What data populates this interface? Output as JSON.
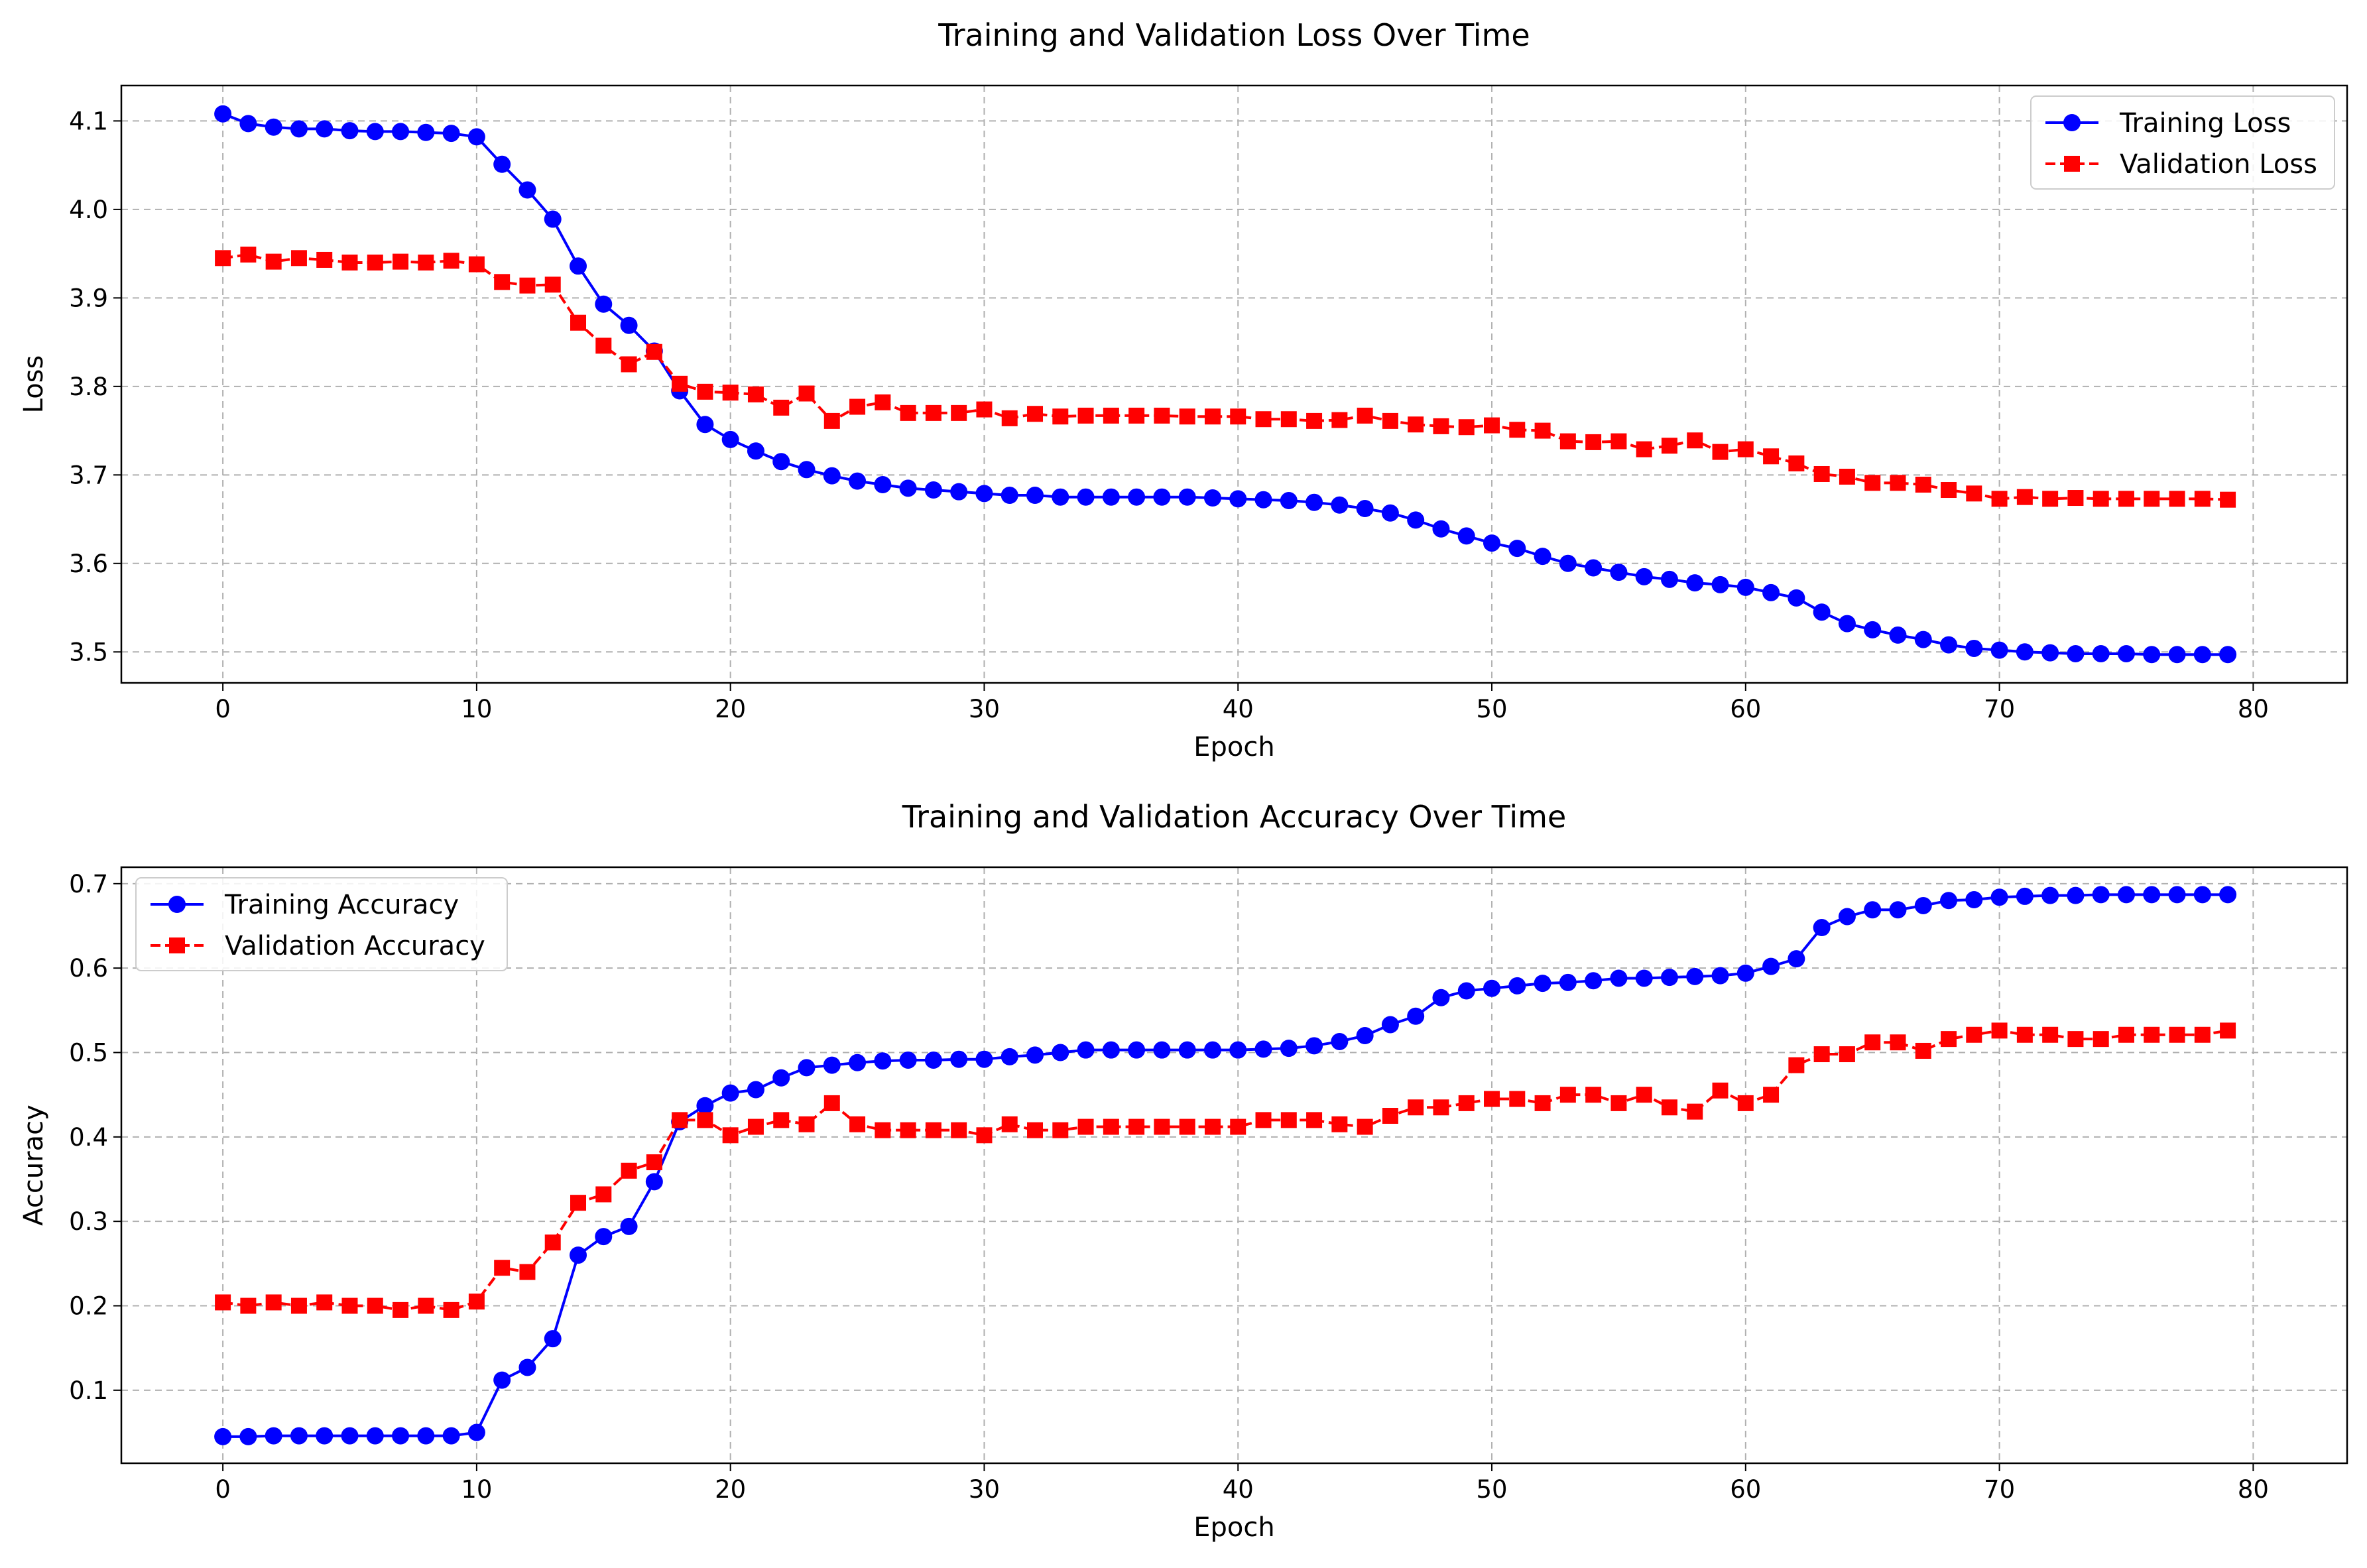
{
  "chart_data": [
    {
      "type": "line",
      "title": "Training and Validation Loss Over Time",
      "xlabel": "Epoch",
      "ylabel": "Loss",
      "xlim": [
        -4,
        83.7
      ],
      "ylim": [
        3.465,
        4.14
      ],
      "xticks": [
        0,
        10,
        20,
        30,
        40,
        50,
        60,
        70,
        80
      ],
      "yticks": [
        3.5,
        3.6,
        3.7,
        3.8,
        3.9,
        4.0,
        4.1
      ],
      "ytick_labels": [
        "3.5",
        "3.6",
        "3.7",
        "3.8",
        "3.9",
        "4.0",
        "4.1"
      ],
      "grid": true,
      "legend": "top-right",
      "x": [
        0,
        1,
        2,
        3,
        4,
        5,
        6,
        7,
        8,
        9,
        10,
        11,
        12,
        13,
        14,
        15,
        16,
        17,
        18,
        19,
        20,
        21,
        22,
        23,
        24,
        25,
        26,
        27,
        28,
        29,
        30,
        31,
        32,
        33,
        34,
        35,
        36,
        37,
        38,
        39,
        40,
        41,
        42,
        43,
        44,
        45,
        46,
        47,
        48,
        49,
        50,
        51,
        52,
        53,
        54,
        55,
        56,
        57,
        58,
        59,
        60,
        61,
        62,
        63,
        64,
        65,
        66,
        67,
        68,
        69,
        70,
        71,
        72,
        73,
        74,
        75,
        76,
        77,
        78,
        79
      ],
      "series": [
        {
          "name": "Training Loss",
          "color": "#0000ff",
          "marker": "circle",
          "linestyle": "solid",
          "values": [
            4.108,
            4.097,
            4.093,
            4.091,
            4.091,
            4.089,
            4.088,
            4.088,
            4.087,
            4.086,
            4.082,
            4.051,
            4.022,
            3.989,
            3.936,
            3.893,
            3.869,
            3.84,
            3.795,
            3.757,
            3.74,
            3.727,
            3.715,
            3.706,
            3.699,
            3.693,
            3.689,
            3.685,
            3.683,
            3.681,
            3.679,
            3.677,
            3.677,
            3.675,
            3.675,
            3.675,
            3.675,
            3.675,
            3.675,
            3.674,
            3.673,
            3.672,
            3.671,
            3.669,
            3.666,
            3.662,
            3.657,
            3.649,
            3.639,
            3.631,
            3.623,
            3.617,
            3.608,
            3.6,
            3.595,
            3.59,
            3.585,
            3.582,
            3.578,
            3.576,
            3.573,
            3.567,
            3.561,
            3.545,
            3.532,
            3.525,
            3.519,
            3.514,
            3.508,
            3.504,
            3.502,
            3.5,
            3.499,
            3.498,
            3.498,
            3.498,
            3.497,
            3.497,
            3.497,
            3.497
          ]
        },
        {
          "name": "Validation Loss",
          "color": "#ff0000",
          "marker": "square",
          "linestyle": "dashed",
          "values": [
            3.945,
            3.949,
            3.941,
            3.945,
            3.943,
            3.94,
            3.94,
            3.941,
            3.94,
            3.942,
            3.938,
            3.918,
            3.914,
            3.915,
            3.872,
            3.846,
            3.825,
            3.839,
            3.803,
            3.794,
            3.793,
            3.791,
            3.776,
            3.792,
            3.761,
            3.777,
            3.782,
            3.77,
            3.77,
            3.77,
            3.774,
            3.764,
            3.769,
            3.766,
            3.767,
            3.767,
            3.767,
            3.767,
            3.766,
            3.766,
            3.766,
            3.763,
            3.763,
            3.761,
            3.762,
            3.767,
            3.761,
            3.757,
            3.755,
            3.754,
            3.756,
            3.751,
            3.75,
            3.738,
            3.737,
            3.738,
            3.729,
            3.733,
            3.739,
            3.726,
            3.729,
            3.721,
            3.713,
            3.701,
            3.698,
            3.691,
            3.691,
            3.689,
            3.683,
            3.679,
            3.673,
            3.675,
            3.673,
            3.674,
            3.673,
            3.673,
            3.673,
            3.673,
            3.673,
            3.672
          ]
        }
      ]
    },
    {
      "type": "line",
      "title": "Training and Validation Accuracy Over Time",
      "xlabel": "Epoch",
      "ylabel": "Accuracy",
      "xlim": [
        -4,
        83.7
      ],
      "ylim": [
        0.0135,
        0.7195
      ],
      "xticks": [
        0,
        10,
        20,
        30,
        40,
        50,
        60,
        70,
        80
      ],
      "yticks": [
        0.1,
        0.2,
        0.3,
        0.4,
        0.5,
        0.6,
        0.7
      ],
      "ytick_labels": [
        "0.1",
        "0.2",
        "0.3",
        "0.4",
        "0.5",
        "0.6",
        "0.7"
      ],
      "grid": true,
      "legend": "top-left",
      "x": [
        0,
        1,
        2,
        3,
        4,
        5,
        6,
        7,
        8,
        9,
        10,
        11,
        12,
        13,
        14,
        15,
        16,
        17,
        18,
        19,
        20,
        21,
        22,
        23,
        24,
        25,
        26,
        27,
        28,
        29,
        30,
        31,
        32,
        33,
        34,
        35,
        36,
        37,
        38,
        39,
        40,
        41,
        42,
        43,
        44,
        45,
        46,
        47,
        48,
        49,
        50,
        51,
        52,
        53,
        54,
        55,
        56,
        57,
        58,
        59,
        60,
        61,
        62,
        63,
        64,
        65,
        66,
        67,
        68,
        69,
        70,
        71,
        72,
        73,
        74,
        75,
        76,
        77,
        78,
        79
      ],
      "series": [
        {
          "name": "Training Accuracy",
          "color": "#0000ff",
          "marker": "circle",
          "linestyle": "solid",
          "values": [
            0.045,
            0.045,
            0.046,
            0.046,
            0.046,
            0.046,
            0.046,
            0.046,
            0.046,
            0.046,
            0.05,
            0.112,
            0.127,
            0.161,
            0.26,
            0.282,
            0.294,
            0.347,
            0.418,
            0.437,
            0.452,
            0.456,
            0.47,
            0.482,
            0.485,
            0.488,
            0.49,
            0.491,
            0.491,
            0.492,
            0.492,
            0.495,
            0.497,
            0.5,
            0.503,
            0.503,
            0.503,
            0.503,
            0.503,
            0.503,
            0.503,
            0.504,
            0.505,
            0.508,
            0.513,
            0.52,
            0.533,
            0.543,
            0.565,
            0.573,
            0.576,
            0.579,
            0.582,
            0.583,
            0.585,
            0.588,
            0.588,
            0.589,
            0.59,
            0.591,
            0.594,
            0.602,
            0.611,
            0.648,
            0.661,
            0.669,
            0.669,
            0.674,
            0.68,
            0.681,
            0.684,
            0.685,
            0.686,
            0.686,
            0.687,
            0.687,
            0.687,
            0.687,
            0.687,
            0.687
          ]
        },
        {
          "name": "Validation Accuracy",
          "color": "#ff0000",
          "marker": "square",
          "linestyle": "dashed",
          "values": [
            0.204,
            0.2,
            0.204,
            0.2,
            0.204,
            0.2,
            0.2,
            0.195,
            0.2,
            0.195,
            0.205,
            0.245,
            0.24,
            0.275,
            0.322,
            0.332,
            0.36,
            0.37,
            0.42,
            0.42,
            0.402,
            0.412,
            0.42,
            0.415,
            0.44,
            0.415,
            0.408,
            0.408,
            0.408,
            0.408,
            0.402,
            0.415,
            0.408,
            0.408,
            0.412,
            0.412,
            0.412,
            0.412,
            0.412,
            0.412,
            0.412,
            0.42,
            0.42,
            0.42,
            0.415,
            0.412,
            0.425,
            0.435,
            0.435,
            0.44,
            0.445,
            0.445,
            0.44,
            0.45,
            0.45,
            0.44,
            0.45,
            0.435,
            0.43,
            0.455,
            0.44,
            0.45,
            0.485,
            0.498,
            0.498,
            0.512,
            0.512,
            0.502,
            0.516,
            0.521,
            0.526,
            0.521,
            0.521,
            0.516,
            0.516,
            0.521,
            0.521,
            0.521,
            0.521,
            0.526
          ]
        }
      ]
    }
  ]
}
